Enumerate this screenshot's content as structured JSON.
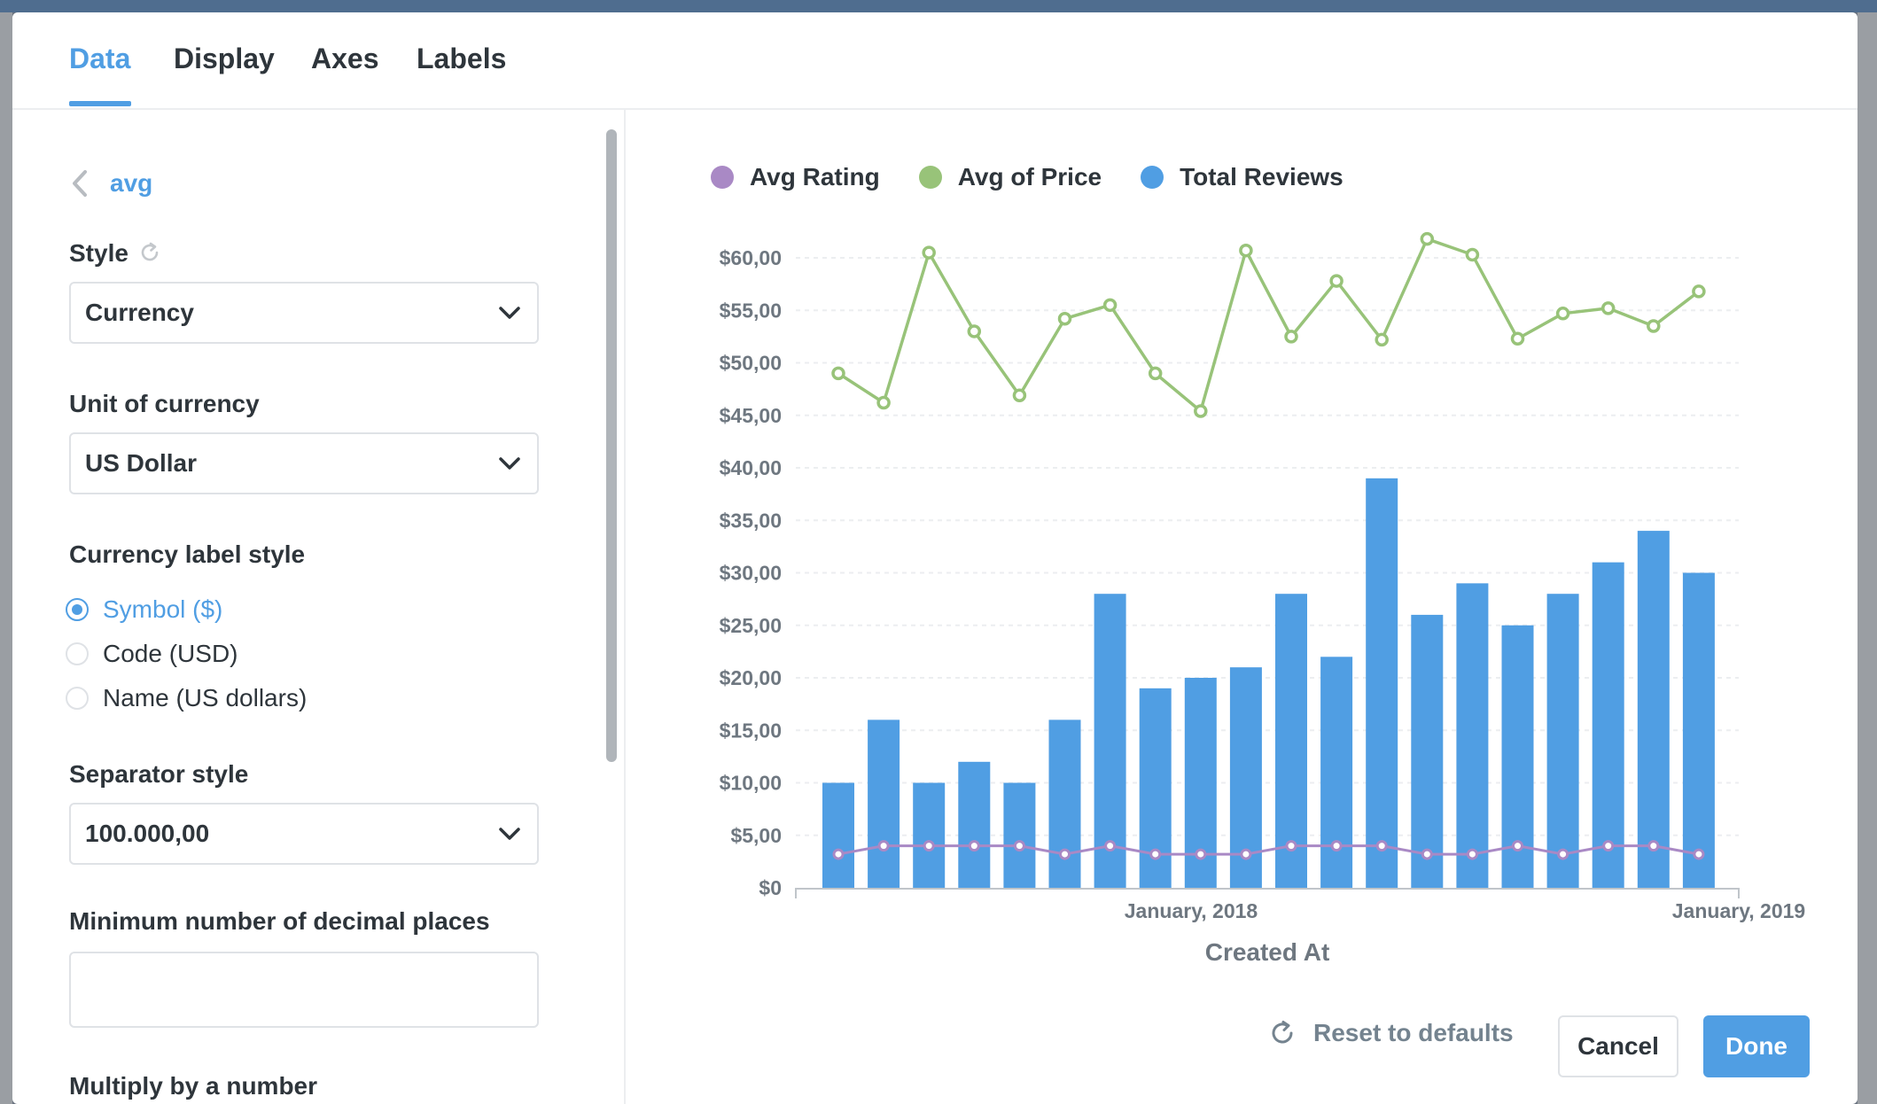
{
  "tabs": [
    "Data",
    "Display",
    "Axes",
    "Labels"
  ],
  "back_label": "avg",
  "style": {
    "label": "Style",
    "value": "Currency"
  },
  "unit_of_currency": {
    "label": "Unit of currency",
    "value": "US Dollar"
  },
  "currency_label_style": {
    "label": "Currency label style",
    "options": [
      "Symbol ($)",
      "Code (USD)",
      "Name (US dollars)"
    ],
    "selected": "Symbol ($)"
  },
  "separator_style": {
    "label": "Separator style",
    "value": "100.000,00"
  },
  "min_decimals": {
    "label": "Minimum number of decimal places",
    "value": ""
  },
  "multiply_label": "Multiply by a number",
  "footer": {
    "reset": "Reset to defaults",
    "cancel": "Cancel",
    "done": "Done"
  },
  "colors": {
    "accent": "#509ee3",
    "avg_rating": "#a989c5",
    "avg_price": "#98c379",
    "total_reviews": "#509ee3"
  },
  "chart_data": {
    "type": "bar+line",
    "legend": [
      "Avg Rating",
      "Avg of Price",
      "Total Reviews"
    ],
    "xlabel": "Created At",
    "x_ticks": [
      "January, 2018",
      "January, 2019"
    ],
    "y_ticks": [
      "$0",
      "$5,00",
      "$10,00",
      "$15,00",
      "$20,00",
      "$25,00",
      "$30,00",
      "$35,00",
      "$40,00",
      "$45,00",
      "$50,00",
      "$55,00",
      "$60,00"
    ],
    "ylim": [
      0,
      60
    ],
    "total_reviews": [
      10,
      16,
      10,
      12,
      10,
      16,
      28,
      19,
      20,
      21,
      28,
      22,
      39,
      26,
      29,
      25,
      28,
      31,
      34,
      30
    ],
    "avg_of_price": [
      49,
      46.2,
      60.5,
      53,
      46.9,
      54.2,
      55.5,
      49,
      45.4,
      60.7,
      52.5,
      57.8,
      52.2,
      61.8,
      60.3,
      52.3,
      54.7,
      55.2,
      53.5,
      56.8
    ],
    "avg_rating": [
      3.2,
      4,
      4,
      4,
      4,
      3.2,
      4,
      3.2,
      3.2,
      3.2,
      4,
      4,
      4,
      3.2,
      3.2,
      4,
      3.2,
      4,
      4,
      3.2
    ]
  }
}
